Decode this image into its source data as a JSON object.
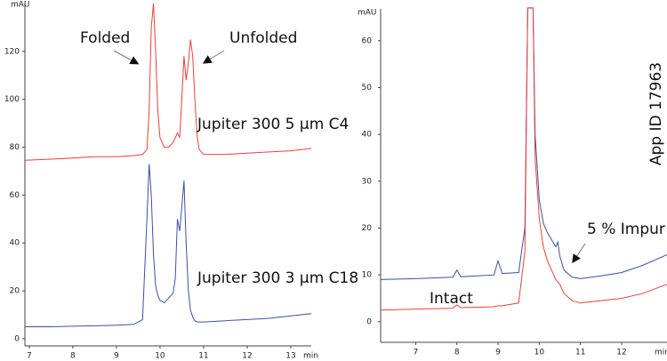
{
  "chart_data": [
    {
      "type": "line",
      "x_label": "min",
      "y_label": "mAU",
      "xlim": [
        6.9,
        13.47
      ],
      "ylim": [
        -3,
        140
      ],
      "xticks": [
        7,
        8,
        9,
        10,
        11,
        12,
        13
      ],
      "yticks": [
        0,
        20,
        40,
        60,
        80,
        100,
        120
      ],
      "x": [
        6.9,
        7.5,
        8,
        8.5,
        9,
        9.4,
        9.6,
        9.7,
        9.75,
        9.8,
        9.85,
        9.9,
        9.95,
        10.0,
        10.1,
        10.2,
        10.3,
        10.35,
        10.4,
        10.45,
        10.5,
        10.55,
        10.6,
        10.65,
        10.7,
        10.75,
        10.8,
        10.85,
        10.9,
        11.0,
        11.5,
        12,
        12.5,
        13,
        13.47
      ],
      "series": [
        {
          "color": "#e8403c",
          "values": [
            74.5,
            75,
            75.5,
            76,
            76,
            76.5,
            77,
            79,
            95,
            130,
            140,
            120,
            95,
            84,
            80,
            80,
            82,
            84,
            86,
            84,
            100,
            118,
            108,
            115,
            125,
            118,
            100,
            85,
            79,
            77,
            77,
            77.5,
            78,
            78.5,
            79.5
          ]
        },
        {
          "color": "#3f4f9e",
          "values": [
            5,
            5,
            5.2,
            5.4,
            5.6,
            6,
            8,
            50,
            73,
            60,
            35,
            22,
            18,
            16,
            15,
            17,
            19,
            25,
            50,
            45,
            55,
            66,
            40,
            20,
            12,
            9,
            7.5,
            7,
            7,
            7,
            7.5,
            8,
            8.5,
            9.5,
            10.5
          ]
        }
      ],
      "annotations": [
        "Folded",
        "Unfolded",
        "Jupiter 300 5 µm C4",
        "Jupiter 300 3 µm C18"
      ]
    },
    {
      "type": "line",
      "x_label": "min",
      "y_label": "mAU",
      "xlim": [
        6.15,
        13.1
      ],
      "ylim": [
        -4.4,
        66.8
      ],
      "xticks": [
        7,
        8,
        9,
        10,
        11,
        12
      ],
      "yticks": [
        0,
        10,
        20,
        30,
        40,
        50,
        60
      ],
      "x": [
        6.15,
        7,
        7.9,
        8,
        8.1,
        8.9,
        9.0,
        9.1,
        9.5,
        9.65,
        9.72,
        9.75,
        9.85,
        9.9,
        10.0,
        10.1,
        10.2,
        10.3,
        10.4,
        10.45,
        10.5,
        10.6,
        10.8,
        11,
        11.5,
        12,
        12.5,
        13.1
      ],
      "series": [
        {
          "color": "#3f4f9e",
          "values": [
            9,
            9.2,
            9.5,
            11,
            9.6,
            10,
            13,
            10.3,
            10.5,
            20,
            67,
            67,
            67,
            40,
            26,
            21,
            19,
            17.5,
            16,
            17,
            14,
            11,
            9.5,
            9.2,
            9.8,
            10.5,
            12,
            14.3
          ]
        },
        {
          "color": "#e8403c",
          "values": [
            2.5,
            2.7,
            2.9,
            3.6,
            3,
            3.2,
            3.4,
            3.4,
            4,
            15,
            67,
            67,
            67,
            35,
            22,
            16,
            13,
            11,
            9,
            8.5,
            8,
            6,
            4.5,
            4,
            4.5,
            5,
            6,
            8
          ]
        }
      ],
      "annotations": [
        "Intact",
        "5 % Impur",
        "App ID 17963"
      ]
    }
  ]
}
